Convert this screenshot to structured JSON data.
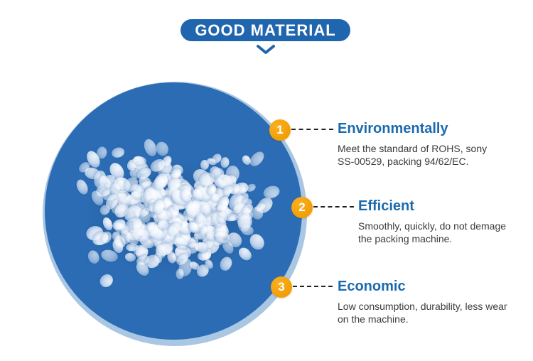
{
  "header": {
    "label": "GOOD MATERIAL",
    "chevron_icon": "chevron-down"
  },
  "photo": {
    "icon": "plastic-pellets-photo"
  },
  "features": [
    {
      "number": "1",
      "title": "Environmentally",
      "body_lines": [
        "Meet the standard of ROHS, sony",
        "SS-00529, packing 94/62/EC."
      ]
    },
    {
      "number": "2",
      "title": "Efficient",
      "body_lines": [
        "Smoothly, quickly, do not demage",
        "the packing machine."
      ]
    },
    {
      "number": "3",
      "title": "Economic",
      "body_lines": [
        "Low consumption, durability, less wear",
        "on the machine."
      ]
    }
  ],
  "colors": {
    "header_blue": "#2066ae",
    "title_blue": "#1b6aae",
    "circle_blue": "#2b6cb4",
    "circle_rim_blue": "#a9c6e3",
    "badge_orange": "#f2a004",
    "dash_color": "#222222",
    "body_text": "#3a3a3a"
  }
}
